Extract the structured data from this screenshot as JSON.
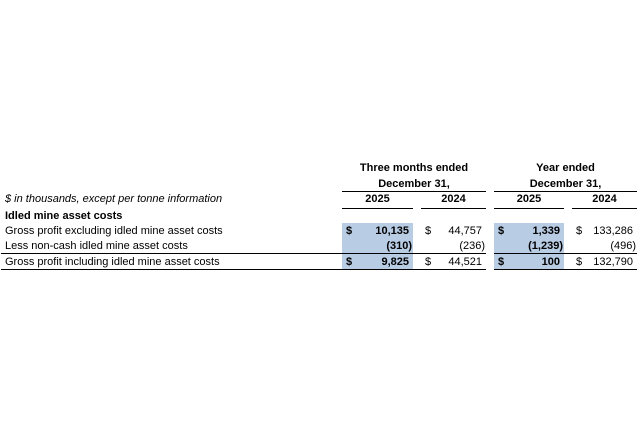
{
  "page": {
    "background": "#ffffff"
  },
  "table": {
    "highlight_color": "#b8cce4",
    "note": "$ in thousands, except per tonne information",
    "section_header": "Idled mine asset costs",
    "groups": [
      {
        "line1": "Three months ended",
        "line2": "December 31,",
        "years": [
          "2025",
          "2024"
        ]
      },
      {
        "line1": "Year ended",
        "line2": "December 31,",
        "years": [
          "2025",
          "2024"
        ]
      }
    ],
    "rows": [
      {
        "label": "Gross profit excluding idled mine asset costs",
        "cells": [
          {
            "currency": "$",
            "value": "10,135"
          },
          {
            "currency": "$",
            "value": "44,757"
          },
          {
            "currency": "$",
            "value": "1,339"
          },
          {
            "currency": "$",
            "value": "133,286"
          }
        ]
      },
      {
        "label": "Less non-cash idled mine asset costs",
        "cells": [
          {
            "currency": "",
            "value": "(310)"
          },
          {
            "currency": "",
            "value": "(236)"
          },
          {
            "currency": "",
            "value": "(1,239)"
          },
          {
            "currency": "",
            "value": "(496)"
          }
        ]
      },
      {
        "label": "Gross profit including idled mine asset costs",
        "cells": [
          {
            "currency": "$",
            "value": "9,825"
          },
          {
            "currency": "$",
            "value": "44,521"
          },
          {
            "currency": "$",
            "value": "100"
          },
          {
            "currency": "$",
            "value": "132,790"
          }
        ]
      }
    ]
  }
}
